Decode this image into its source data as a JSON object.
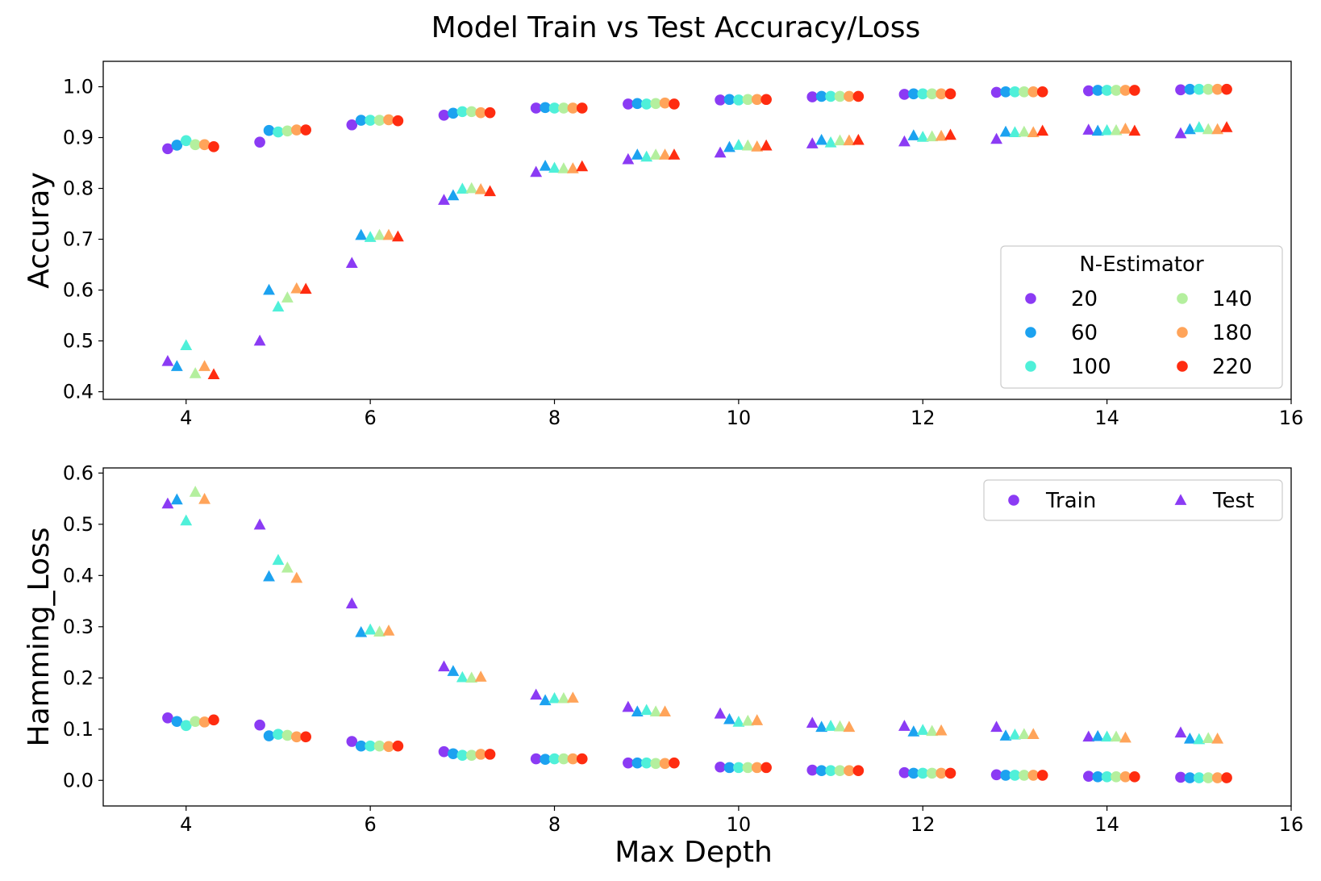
{
  "chart_data": {
    "title": "Model Train vs Test Accuracy/Loss",
    "xlabel": "Max Depth",
    "colors": {
      "20": "#8b3bf4",
      "60": "#1ca2f0",
      "100": "#4ff0d9",
      "140": "#b4ef9e",
      "180": "#ffa45a",
      "220": "#ff2c10"
    },
    "estimators": [
      20,
      60,
      100,
      140,
      180,
      220
    ],
    "depths": [
      4,
      5,
      6,
      7,
      8,
      9,
      10,
      11,
      12,
      13,
      14,
      15
    ],
    "panels": [
      {
        "type": "scatter",
        "ylabel": "Accuray",
        "xlim": [
          3.1,
          16
        ],
        "ylim": [
          0.385,
          1.05
        ],
        "xticks": [
          4,
          6,
          8,
          10,
          12,
          14,
          16
        ],
        "yticks": [
          0.4,
          0.5,
          0.6,
          0.7,
          0.8,
          0.9,
          1.0
        ],
        "ytick_labels": [
          "0.4",
          "0.5",
          "0.6",
          "0.7",
          "0.8",
          "0.9",
          "1.0"
        ],
        "legend": {
          "title": "N-Estimator",
          "position": "lower-right",
          "entries": [
            {
              "label": "20",
              "estimator": 20
            },
            {
              "label": "60",
              "estimator": 60
            },
            {
              "label": "100",
              "estimator": 100
            },
            {
              "label": "140",
              "estimator": 140
            },
            {
              "label": "180",
              "estimator": 180
            },
            {
              "label": "220",
              "estimator": 220
            }
          ]
        },
        "series": [
          {
            "name": "Train",
            "marker": "circle",
            "values": [
              [
                0.878,
                0.885,
                0.894,
                0.886,
                0.886,
                0.882
              ],
              [
                0.891,
                0.914,
                0.911,
                0.913,
                0.915,
                0.915
              ],
              [
                0.925,
                0.934,
                0.934,
                0.934,
                0.935,
                0.933
              ],
              [
                0.944,
                0.948,
                0.951,
                0.951,
                0.949,
                0.949
              ],
              [
                0.958,
                0.959,
                0.958,
                0.958,
                0.958,
                0.958
              ],
              [
                0.966,
                0.967,
                0.966,
                0.967,
                0.968,
                0.966
              ],
              [
                0.974,
                0.975,
                0.974,
                0.975,
                0.975,
                0.975
              ],
              [
                0.98,
                0.981,
                0.981,
                0.981,
                0.981,
                0.981
              ],
              [
                0.985,
                0.986,
                0.986,
                0.986,
                0.986,
                0.986
              ],
              [
                0.989,
                0.99,
                0.99,
                0.99,
                0.99,
                0.99
              ],
              [
                0.992,
                0.993,
                0.993,
                0.993,
                0.993,
                0.993
              ],
              [
                0.994,
                0.995,
                0.995,
                0.995,
                0.995,
                0.995
              ]
            ]
          },
          {
            "name": "Test",
            "marker": "triangle",
            "values": [
              [
                0.46,
                0.45,
                0.491,
                0.436,
                0.45,
                0.434
              ],
              [
                0.5,
                0.6,
                0.567,
                0.585,
                0.603,
                0.602
              ],
              [
                0.653,
                0.708,
                0.704,
                0.708,
                0.708,
                0.705
              ],
              [
                0.777,
                0.786,
                0.799,
                0.8,
                0.798,
                0.794
              ],
              [
                0.832,
                0.844,
                0.84,
                0.839,
                0.839,
                0.843
              ],
              [
                0.857,
                0.866,
                0.862,
                0.866,
                0.866,
                0.866
              ],
              [
                0.87,
                0.881,
                0.885,
                0.884,
                0.882,
                0.884
              ],
              [
                0.888,
                0.895,
                0.89,
                0.894,
                0.894,
                0.895
              ],
              [
                0.892,
                0.904,
                0.901,
                0.902,
                0.903,
                0.905
              ],
              [
                0.897,
                0.911,
                0.91,
                0.911,
                0.91,
                0.913
              ],
              [
                0.915,
                0.913,
                0.914,
                0.914,
                0.917,
                0.913
              ],
              [
                0.908,
                0.916,
                0.92,
                0.916,
                0.916,
                0.92
              ]
            ]
          }
        ]
      },
      {
        "type": "scatter",
        "ylabel": "Hamming_Loss",
        "xlim": [
          3.1,
          16
        ],
        "ylim": [
          -0.05,
          0.61
        ],
        "xticks": [
          4,
          6,
          8,
          10,
          12,
          14,
          16
        ],
        "yticks": [
          0.0,
          0.1,
          0.2,
          0.3,
          0.4,
          0.5,
          0.6
        ],
        "ytick_labels": [
          "0.0",
          "0.1",
          "0.2",
          "0.3",
          "0.4",
          "0.5",
          "0.6"
        ],
        "legend": {
          "position": "upper-right",
          "entries": [
            {
              "label": "Train",
              "marker": "circle"
            },
            {
              "label": "Test",
              "marker": "triangle"
            }
          ]
        },
        "series": [
          {
            "name": "Train",
            "marker": "circle",
            "values": [
              [
                0.122,
                0.115,
                0.107,
                0.115,
                0.114,
                0.118
              ],
              [
                0.108,
                0.087,
                0.09,
                0.088,
                0.085,
                0.085
              ],
              [
                0.076,
                0.067,
                0.067,
                0.067,
                0.066,
                0.067
              ],
              [
                0.056,
                0.052,
                0.049,
                0.049,
                0.051,
                0.051
              ],
              [
                0.042,
                0.041,
                0.042,
                0.042,
                0.042,
                0.042
              ],
              [
                0.034,
                0.034,
                0.034,
                0.033,
                0.033,
                0.034
              ],
              [
                0.026,
                0.025,
                0.025,
                0.025,
                0.025,
                0.025
              ],
              [
                0.02,
                0.019,
                0.019,
                0.019,
                0.019,
                0.019
              ],
              [
                0.015,
                0.014,
                0.014,
                0.014,
                0.014,
                0.014
              ],
              [
                0.011,
                0.01,
                0.01,
                0.01,
                0.01,
                0.01
              ],
              [
                0.008,
                0.007,
                0.007,
                0.007,
                0.007,
                0.007
              ],
              [
                0.006,
                0.005,
                0.005,
                0.005,
                0.005,
                0.005
              ]
            ]
          },
          {
            "name": "Test",
            "marker": "triangle",
            "values": [
              [
                0.54,
                0.548,
                0.507,
                0.563,
                0.549,
                null
              ],
              [
                0.499,
                0.398,
                0.43,
                0.415,
                0.395,
                null
              ],
              [
                0.345,
                0.289,
                0.294,
                0.29,
                0.292,
                null
              ],
              [
                0.222,
                0.213,
                0.201,
                0.2,
                0.202,
                null
              ],
              [
                0.167,
                0.156,
                0.16,
                0.16,
                0.161,
                null
              ],
              [
                0.143,
                0.134,
                0.137,
                0.134,
                0.134,
                null
              ],
              [
                0.13,
                0.119,
                0.114,
                0.116,
                0.117,
                null
              ],
              [
                0.112,
                0.104,
                0.106,
                0.105,
                0.104,
                null
              ],
              [
                0.106,
                0.095,
                0.098,
                0.096,
                0.097,
                null
              ],
              [
                0.104,
                0.087,
                0.089,
                0.09,
                0.09,
                null
              ],
              [
                0.085,
                0.086,
                0.085,
                0.085,
                0.083,
                null
              ],
              [
                0.093,
                0.081,
                0.08,
                0.082,
                0.081,
                null
              ]
            ]
          }
        ]
      }
    ]
  }
}
